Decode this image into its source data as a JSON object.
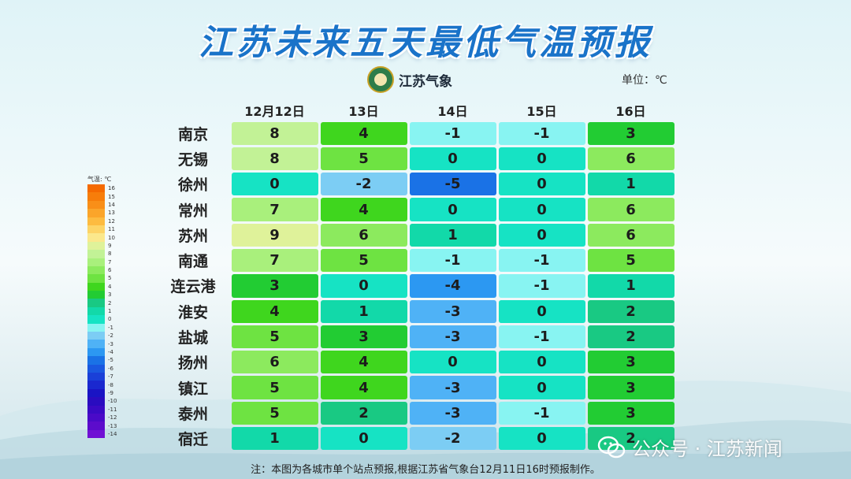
{
  "title": "江苏未来五天最低气温预报",
  "logo_text": "江苏气象",
  "unit_label": "单位：℃",
  "legend": {
    "title": "气温: ℃",
    "items": [
      {
        "label": "16",
        "color": "#f56a00"
      },
      {
        "label": "15",
        "color": "#f77d0a"
      },
      {
        "label": "14",
        "color": "#f98f18"
      },
      {
        "label": "13",
        "color": "#fba52a"
      },
      {
        "label": "12",
        "color": "#fdbb40"
      },
      {
        "label": "11",
        "color": "#fdd466"
      },
      {
        "label": "10",
        "color": "#fbe88c"
      },
      {
        "label": "9",
        "color": "#dff29a"
      },
      {
        "label": "8",
        "color": "#c2f296"
      },
      {
        "label": "7",
        "color": "#a9f07c"
      },
      {
        "label": "6",
        "color": "#8cea5e"
      },
      {
        "label": "5",
        "color": "#6ee342"
      },
      {
        "label": "4",
        "color": "#3fd61e"
      },
      {
        "label": "3",
        "color": "#22cc33"
      },
      {
        "label": "2",
        "color": "#19c983"
      },
      {
        "label": "1",
        "color": "#12d9a9"
      },
      {
        "label": "0",
        "color": "#16e3c4"
      },
      {
        "label": "-1",
        "color": "#88f4f2"
      },
      {
        "label": "-2",
        "color": "#7ccdf4"
      },
      {
        "label": "-3",
        "color": "#4fb2f6"
      },
      {
        "label": "-4",
        "color": "#2c98f2"
      },
      {
        "label": "-5",
        "color": "#1a72e6"
      },
      {
        "label": "-6",
        "color": "#1a58e0"
      },
      {
        "label": "-7",
        "color": "#1a40d8"
      },
      {
        "label": "-8",
        "color": "#1a28cf"
      },
      {
        "label": "-9",
        "color": "#1a14c4"
      },
      {
        "label": "-10",
        "color": "#2a0cc0"
      },
      {
        "label": "-11",
        "color": "#3a0ac4"
      },
      {
        "label": "-12",
        "color": "#4a0ac8"
      },
      {
        "label": "-13",
        "color": "#5c0ccc"
      },
      {
        "label": "-14",
        "color": "#7010d4"
      }
    ]
  },
  "table": {
    "columns": [
      "12月12日",
      "13日",
      "14日",
      "15日",
      "16日"
    ],
    "rows": [
      {
        "city": "南京",
        "values": [
          "8",
          "4",
          "-1",
          "-1",
          "3"
        ]
      },
      {
        "city": "无锡",
        "values": [
          "8",
          "5",
          "0",
          "0",
          "6"
        ]
      },
      {
        "city": "徐州",
        "values": [
          "0",
          "-2",
          "-5",
          "0",
          "1"
        ]
      },
      {
        "city": "常州",
        "values": [
          "7",
          "4",
          "0",
          "0",
          "6"
        ]
      },
      {
        "city": "苏州",
        "values": [
          "9",
          "6",
          "1",
          "0",
          "6"
        ]
      },
      {
        "city": "南通",
        "values": [
          "7",
          "5",
          "-1",
          "-1",
          "5"
        ]
      },
      {
        "city": "连云港",
        "values": [
          "3",
          "0",
          "-4",
          "-1",
          "1"
        ]
      },
      {
        "city": "淮安",
        "values": [
          "4",
          "1",
          "-3",
          "0",
          "2"
        ]
      },
      {
        "city": "盐城",
        "values": [
          "5",
          "3",
          "-3",
          "-1",
          "2"
        ]
      },
      {
        "city": "扬州",
        "values": [
          "6",
          "4",
          "0",
          "0",
          "3"
        ]
      },
      {
        "city": "镇江",
        "values": [
          "5",
          "4",
          "-3",
          "0",
          "3"
        ]
      },
      {
        "city": "泰州",
        "values": [
          "5",
          "2",
          "-3",
          "-1",
          "3"
        ]
      },
      {
        "city": "宿迁",
        "values": [
          "1",
          "0",
          "-2",
          "0",
          "2"
        ]
      }
    ]
  },
  "note": "注：本图为各城市单个站点预报,根据江苏省气象台12月11日16时预报制作。",
  "watermark": {
    "label": "公众号 · 江苏新闻",
    "icon": "wechat-icon"
  }
}
